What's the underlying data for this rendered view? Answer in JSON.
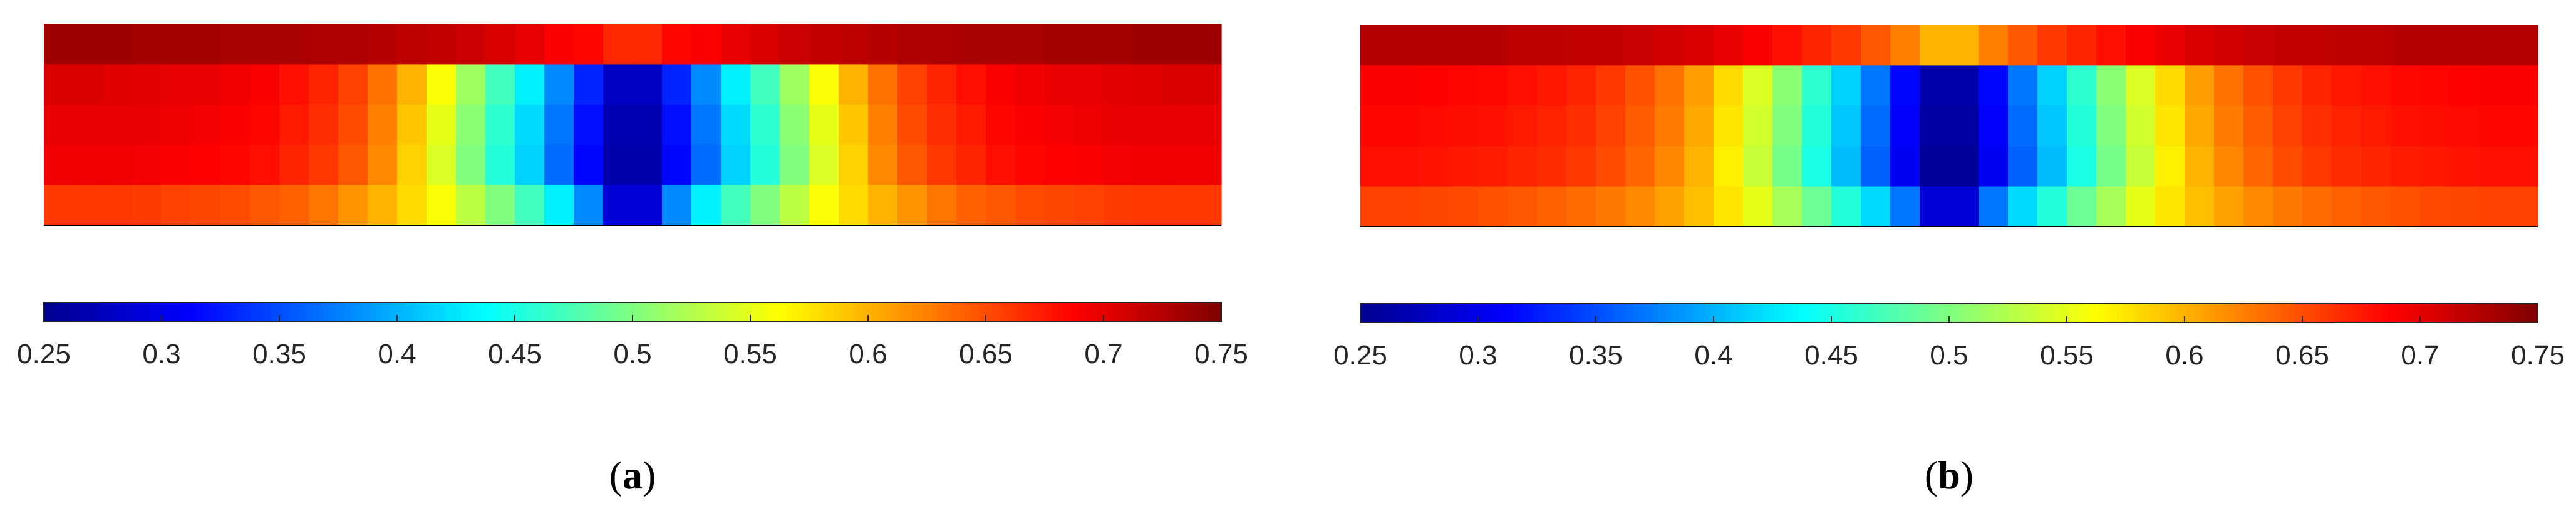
{
  "chart_data": [
    {
      "type": "heatmap",
      "panel_label": "a",
      "colormap": "jet",
      "colorbar": {
        "min": 0.25,
        "max": 0.75,
        "ticks": [
          "0.25",
          "0.3",
          "0.35",
          "0.4",
          "0.45",
          "0.5",
          "0.55",
          "0.6",
          "0.65",
          "0.7",
          "0.75"
        ]
      },
      "columns": 40,
      "rows": 5,
      "symmetric_about_center": true,
      "values": [
        [
          0.735,
          0.735,
          0.735,
          0.733,
          0.733,
          0.733,
          0.73,
          0.73,
          0.73,
          0.727,
          0.727,
          0.723,
          0.72,
          0.717,
          0.713,
          0.705,
          0.7,
          0.69,
          0.685,
          0.668,
          0.668,
          0.685,
          0.69,
          0.7,
          0.705,
          0.713,
          0.717,
          0.72,
          0.723,
          0.727,
          0.727,
          0.73,
          0.73,
          0.73,
          0.733,
          0.733,
          0.733,
          0.735,
          0.735,
          0.735
        ],
        [
          0.705,
          0.705,
          0.703,
          0.702,
          0.7,
          0.698,
          0.695,
          0.69,
          0.68,
          0.67,
          0.655,
          0.632,
          0.6,
          0.56,
          0.515,
          0.47,
          0.43,
          0.38,
          0.33,
          0.28,
          0.28,
          0.33,
          0.38,
          0.43,
          0.47,
          0.515,
          0.56,
          0.6,
          0.632,
          0.655,
          0.67,
          0.68,
          0.69,
          0.695,
          0.698,
          0.7,
          0.702,
          0.703,
          0.705,
          0.705
        ],
        [
          0.7,
          0.7,
          0.7,
          0.698,
          0.696,
          0.693,
          0.69,
          0.685,
          0.675,
          0.665,
          0.65,
          0.625,
          0.59,
          0.55,
          0.505,
          0.46,
          0.42,
          0.37,
          0.32,
          0.27,
          0.27,
          0.32,
          0.37,
          0.42,
          0.46,
          0.505,
          0.55,
          0.59,
          0.625,
          0.65,
          0.665,
          0.675,
          0.685,
          0.69,
          0.693,
          0.696,
          0.698,
          0.7,
          0.7,
          0.7
        ],
        [
          0.695,
          0.695,
          0.695,
          0.693,
          0.69,
          0.688,
          0.685,
          0.68,
          0.67,
          0.66,
          0.645,
          0.62,
          0.585,
          0.545,
          0.5,
          0.455,
          0.415,
          0.365,
          0.315,
          0.265,
          0.265,
          0.315,
          0.365,
          0.415,
          0.455,
          0.5,
          0.545,
          0.585,
          0.62,
          0.645,
          0.66,
          0.67,
          0.68,
          0.685,
          0.688,
          0.69,
          0.693,
          0.695,
          0.695,
          0.695
        ],
        [
          0.66,
          0.66,
          0.66,
          0.658,
          0.655,
          0.653,
          0.65,
          0.645,
          0.64,
          0.63,
          0.615,
          0.6,
          0.58,
          0.56,
          0.53,
          0.5,
          0.47,
          0.43,
          0.38,
          0.29,
          0.29,
          0.38,
          0.43,
          0.47,
          0.5,
          0.53,
          0.56,
          0.58,
          0.6,
          0.615,
          0.63,
          0.64,
          0.645,
          0.65,
          0.653,
          0.655,
          0.658,
          0.66,
          0.66,
          0.66
        ]
      ]
    },
    {
      "type": "heatmap",
      "panel_label": "b",
      "colormap": "jet",
      "colorbar": {
        "min": 0.25,
        "max": 0.75,
        "ticks": [
          "0.25",
          "0.3",
          "0.35",
          "0.4",
          "0.45",
          "0.5",
          "0.55",
          "0.6",
          "0.65",
          "0.7",
          "0.75"
        ]
      },
      "columns": 40,
      "rows": 5,
      "symmetric_about_center": true,
      "values": [
        [
          0.725,
          0.725,
          0.725,
          0.723,
          0.723,
          0.72,
          0.72,
          0.718,
          0.716,
          0.714,
          0.71,
          0.705,
          0.698,
          0.69,
          0.68,
          0.67,
          0.66,
          0.645,
          0.625,
          0.6,
          0.6,
          0.625,
          0.645,
          0.66,
          0.67,
          0.68,
          0.69,
          0.698,
          0.705,
          0.71,
          0.714,
          0.716,
          0.718,
          0.72,
          0.72,
          0.723,
          0.723,
          0.725,
          0.725,
          0.725
        ],
        [
          0.69,
          0.69,
          0.688,
          0.686,
          0.684,
          0.68,
          0.676,
          0.67,
          0.66,
          0.648,
          0.632,
          0.61,
          0.58,
          0.545,
          0.505,
          0.46,
          0.415,
          0.37,
          0.315,
          0.265,
          0.265,
          0.315,
          0.37,
          0.415,
          0.46,
          0.505,
          0.545,
          0.58,
          0.61,
          0.632,
          0.648,
          0.66,
          0.67,
          0.676,
          0.68,
          0.684,
          0.686,
          0.688,
          0.69,
          0.69
        ],
        [
          0.685,
          0.685,
          0.683,
          0.681,
          0.679,
          0.675,
          0.671,
          0.665,
          0.655,
          0.643,
          0.627,
          0.605,
          0.575,
          0.54,
          0.5,
          0.455,
          0.41,
          0.365,
          0.31,
          0.26,
          0.26,
          0.31,
          0.365,
          0.41,
          0.455,
          0.5,
          0.54,
          0.575,
          0.605,
          0.627,
          0.643,
          0.655,
          0.665,
          0.671,
          0.675,
          0.679,
          0.681,
          0.683,
          0.685,
          0.685
        ],
        [
          0.68,
          0.68,
          0.678,
          0.676,
          0.674,
          0.67,
          0.666,
          0.66,
          0.65,
          0.638,
          0.622,
          0.6,
          0.57,
          0.535,
          0.495,
          0.45,
          0.405,
          0.36,
          0.305,
          0.255,
          0.255,
          0.305,
          0.36,
          0.405,
          0.45,
          0.495,
          0.535,
          0.57,
          0.6,
          0.622,
          0.638,
          0.65,
          0.66,
          0.666,
          0.67,
          0.674,
          0.676,
          0.678,
          0.68,
          0.68
        ],
        [
          0.655,
          0.655,
          0.653,
          0.651,
          0.648,
          0.645,
          0.64,
          0.635,
          0.628,
          0.62,
          0.608,
          0.594,
          0.575,
          0.55,
          0.52,
          0.49,
          0.455,
          0.42,
          0.37,
          0.29,
          0.29,
          0.37,
          0.42,
          0.455,
          0.49,
          0.52,
          0.55,
          0.575,
          0.594,
          0.608,
          0.62,
          0.628,
          0.635,
          0.64,
          0.645,
          0.648,
          0.651,
          0.653,
          0.655,
          0.655
        ]
      ]
    }
  ]
}
